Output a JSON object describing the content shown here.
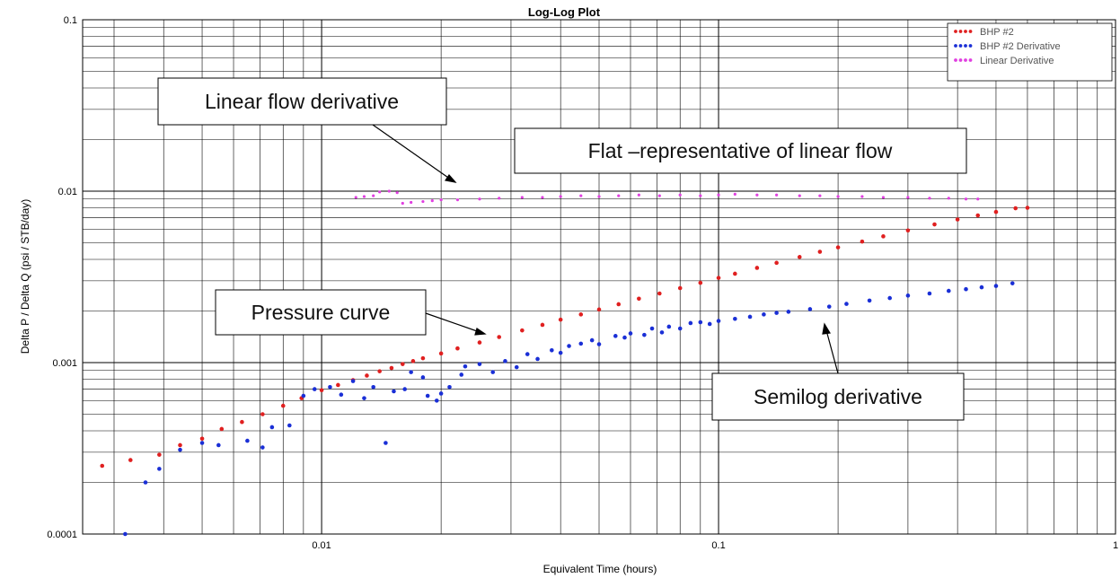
{
  "chart_data": {
    "type": "scatter",
    "title": "Log-Log Plot",
    "xlabel": "Equivalent Time (hours)",
    "ylabel": "Delta P / Delta Q (psi / STB/day)",
    "x_scale": "log",
    "y_scale": "log",
    "xlim": [
      0.0025,
      1
    ],
    "ylim": [
      0.0001,
      0.1
    ],
    "grid": true,
    "legend_position": "top-right",
    "x_tick_labels": [
      {
        "value": 0.01,
        "label": "0.01"
      },
      {
        "value": 0.1,
        "label": "0.1"
      },
      {
        "value": 1,
        "label": "1"
      }
    ],
    "y_tick_labels": [
      {
        "value": 0.0001,
        "label": "0.0001"
      },
      {
        "value": 0.001,
        "label": "0.001"
      },
      {
        "value": 0.01,
        "label": "0.01"
      },
      {
        "value": 0.1,
        "label": "0.1"
      }
    ],
    "series": [
      {
        "name": "BHP #2",
        "color": "#e02020",
        "points": [
          [
            0.0028,
            0.00025
          ],
          [
            0.0033,
            0.00027
          ],
          [
            0.0039,
            0.00029
          ],
          [
            0.0044,
            0.00033
          ],
          [
            0.005,
            0.00036
          ],
          [
            0.0056,
            0.00041
          ],
          [
            0.0063,
            0.00045
          ],
          [
            0.0071,
            0.0005
          ],
          [
            0.008,
            0.00056
          ],
          [
            0.0089,
            0.00062
          ],
          [
            0.01,
            0.00069
          ],
          [
            0.011,
            0.00074
          ],
          [
            0.012,
            0.00079
          ],
          [
            0.013,
            0.00084
          ],
          [
            0.014,
            0.00089
          ],
          [
            0.015,
            0.00093
          ],
          [
            0.016,
            0.00098
          ],
          [
            0.017,
            0.00102
          ],
          [
            0.018,
            0.00106
          ],
          [
            0.02,
            0.00113
          ],
          [
            0.022,
            0.00121
          ],
          [
            0.025,
            0.00131
          ],
          [
            0.028,
            0.00141
          ],
          [
            0.032,
            0.00154
          ],
          [
            0.036,
            0.00166
          ],
          [
            0.04,
            0.00178
          ],
          [
            0.045,
            0.00191
          ],
          [
            0.05,
            0.00204
          ],
          [
            0.056,
            0.00219
          ],
          [
            0.063,
            0.00236
          ],
          [
            0.071,
            0.00253
          ],
          [
            0.08,
            0.00272
          ],
          [
            0.09,
            0.00292
          ],
          [
            0.1,
            0.00312
          ],
          [
            0.11,
            0.0033
          ],
          [
            0.125,
            0.00357
          ],
          [
            0.14,
            0.00382
          ],
          [
            0.16,
            0.00413
          ],
          [
            0.18,
            0.00443
          ],
          [
            0.2,
            0.0047
          ],
          [
            0.23,
            0.00508
          ],
          [
            0.26,
            0.00545
          ],
          [
            0.3,
            0.0059
          ],
          [
            0.35,
            0.0064
          ],
          [
            0.4,
            0.00684
          ],
          [
            0.45,
            0.00722
          ],
          [
            0.5,
            0.00757
          ],
          [
            0.56,
            0.00795
          ],
          [
            0.6,
            0.008
          ]
        ]
      },
      {
        "name": "BHP #2 Derivative",
        "color": "#1a2fd6",
        "points": [
          [
            0.0032,
            0.0001
          ],
          [
            0.0036,
            0.0002
          ],
          [
            0.0039,
            0.00024
          ],
          [
            0.0044,
            0.00031
          ],
          [
            0.005,
            0.00034
          ],
          [
            0.0055,
            0.00033
          ],
          [
            0.0065,
            0.00035
          ],
          [
            0.0071,
            0.00032
          ],
          [
            0.0075,
            0.00042
          ],
          [
            0.0083,
            0.00043
          ],
          [
            0.009,
            0.00064
          ],
          [
            0.0096,
            0.0007
          ],
          [
            0.0105,
            0.00072
          ],
          [
            0.0112,
            0.00065
          ],
          [
            0.012,
            0.00078
          ],
          [
            0.0128,
            0.00062
          ],
          [
            0.0135,
            0.00072
          ],
          [
            0.0145,
            0.00034
          ],
          [
            0.0152,
            0.00068
          ],
          [
            0.0162,
            0.0007
          ],
          [
            0.0168,
            0.00088
          ],
          [
            0.018,
            0.00082
          ],
          [
            0.0185,
            0.00064
          ],
          [
            0.0195,
            0.0006
          ],
          [
            0.02,
            0.00066
          ],
          [
            0.021,
            0.00072
          ],
          [
            0.0225,
            0.00085
          ],
          [
            0.023,
            0.00095
          ],
          [
            0.025,
            0.00098
          ],
          [
            0.027,
            0.00088
          ],
          [
            0.029,
            0.00102
          ],
          [
            0.031,
            0.00094
          ],
          [
            0.033,
            0.00112
          ],
          [
            0.035,
            0.00105
          ],
          [
            0.038,
            0.00118
          ],
          [
            0.04,
            0.00114
          ],
          [
            0.042,
            0.00125
          ],
          [
            0.045,
            0.00129
          ],
          [
            0.048,
            0.00135
          ],
          [
            0.05,
            0.00128
          ],
          [
            0.055,
            0.00143
          ],
          [
            0.058,
            0.0014
          ],
          [
            0.06,
            0.00148
          ],
          [
            0.065,
            0.00145
          ],
          [
            0.068,
            0.00158
          ],
          [
            0.072,
            0.0015
          ],
          [
            0.075,
            0.00162
          ],
          [
            0.08,
            0.00158
          ],
          [
            0.085,
            0.0017
          ],
          [
            0.09,
            0.00172
          ],
          [
            0.095,
            0.00168
          ],
          [
            0.1,
            0.00175
          ],
          [
            0.11,
            0.0018
          ],
          [
            0.12,
            0.00185
          ],
          [
            0.13,
            0.00191
          ],
          [
            0.14,
            0.00195
          ],
          [
            0.15,
            0.00198
          ],
          [
            0.17,
            0.00205
          ],
          [
            0.19,
            0.00212
          ],
          [
            0.21,
            0.0022
          ],
          [
            0.24,
            0.0023
          ],
          [
            0.27,
            0.00238
          ],
          [
            0.3,
            0.00246
          ],
          [
            0.34,
            0.00253
          ],
          [
            0.38,
            0.00262
          ],
          [
            0.42,
            0.00268
          ],
          [
            0.46,
            0.00275
          ],
          [
            0.5,
            0.0028
          ],
          [
            0.55,
            0.0029
          ]
        ]
      },
      {
        "name": "Linear Derivative",
        "color": "#e040e0",
        "points": [
          [
            0.0122,
            0.0092
          ],
          [
            0.0128,
            0.0093
          ],
          [
            0.0135,
            0.0094
          ],
          [
            0.014,
            0.0099
          ],
          [
            0.0148,
            0.01
          ],
          [
            0.0155,
            0.0098
          ],
          [
            0.016,
            0.0085
          ],
          [
            0.0168,
            0.0086
          ],
          [
            0.018,
            0.0087
          ],
          [
            0.019,
            0.0088
          ],
          [
            0.02,
            0.0089
          ],
          [
            0.022,
            0.0089
          ],
          [
            0.025,
            0.009
          ],
          [
            0.028,
            0.0091
          ],
          [
            0.032,
            0.0092
          ],
          [
            0.036,
            0.0092
          ],
          [
            0.04,
            0.0093
          ],
          [
            0.045,
            0.0094
          ],
          [
            0.05,
            0.0093
          ],
          [
            0.056,
            0.0094
          ],
          [
            0.063,
            0.0095
          ],
          [
            0.071,
            0.0094
          ],
          [
            0.08,
            0.0095
          ],
          [
            0.09,
            0.0094
          ],
          [
            0.1,
            0.0095
          ],
          [
            0.11,
            0.0096
          ],
          [
            0.125,
            0.0095
          ],
          [
            0.14,
            0.0095
          ],
          [
            0.16,
            0.0094
          ],
          [
            0.18,
            0.0094
          ],
          [
            0.2,
            0.0093
          ],
          [
            0.23,
            0.0093
          ],
          [
            0.26,
            0.0092
          ],
          [
            0.3,
            0.0092
          ],
          [
            0.34,
            0.0091
          ],
          [
            0.38,
            0.0091
          ],
          [
            0.42,
            0.009
          ],
          [
            0.45,
            0.009
          ]
        ]
      }
    ],
    "annotations": [
      {
        "text": "Linear flow derivative",
        "target": [
          0.019,
          0.011
        ]
      },
      {
        "text": "Flat –representative of linear flow"
      },
      {
        "text": "Pressure curve",
        "target": [
          0.022,
          0.00137
        ]
      },
      {
        "text": "Semilog derivative",
        "target": [
          0.14,
          0.00213
        ]
      }
    ]
  }
}
